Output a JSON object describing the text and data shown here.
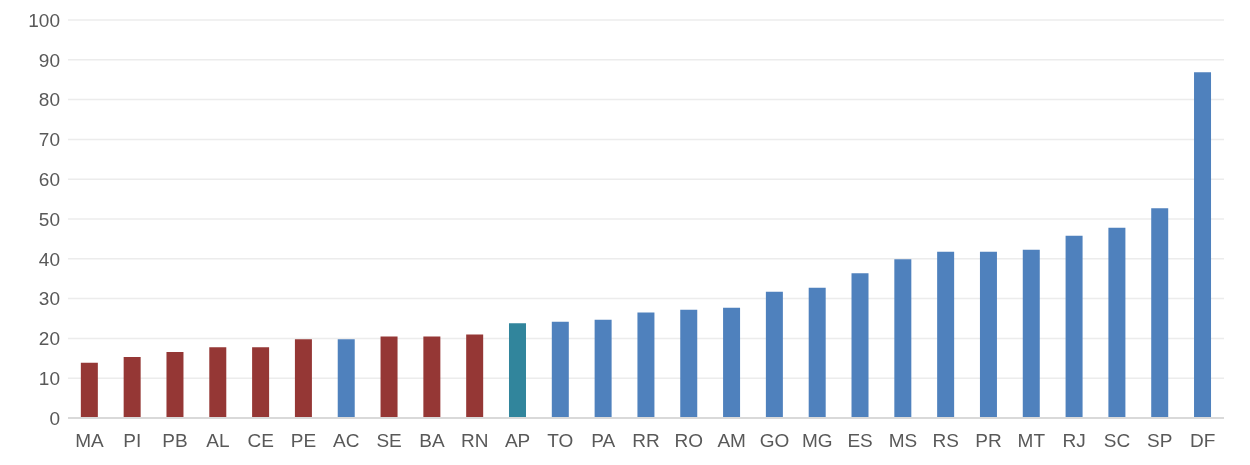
{
  "chart_data": {
    "type": "bar",
    "categories": [
      "MA",
      "PI",
      "PB",
      "AL",
      "CE",
      "PE",
      "AC",
      "SE",
      "BA",
      "RN",
      "AP",
      "TO",
      "PA",
      "RR",
      "RO",
      "AM",
      "GO",
      "MG",
      "ES",
      "MS",
      "RS",
      "PR",
      "MT",
      "RJ",
      "SC",
      "SP",
      "DF"
    ],
    "values": [
      13.9,
      15.3,
      16.6,
      17.8,
      17.8,
      19.8,
      19.8,
      20.5,
      20.5,
      21.0,
      23.8,
      24.2,
      24.7,
      26.5,
      27.2,
      27.7,
      31.7,
      32.7,
      36.4,
      39.9,
      41.8,
      41.8,
      42.3,
      45.8,
      47.8,
      52.7,
      86.9
    ],
    "colors": [
      "#953735",
      "#953735",
      "#953735",
      "#953735",
      "#953735",
      "#953735",
      "#4f81bd",
      "#953735",
      "#953735",
      "#953735",
      "#31859c",
      "#4f81bd",
      "#4f81bd",
      "#4f81bd",
      "#4f81bd",
      "#4f81bd",
      "#4f81bd",
      "#4f81bd",
      "#4f81bd",
      "#4f81bd",
      "#4f81bd",
      "#4f81bd",
      "#4f81bd",
      "#4f81bd",
      "#4f81bd",
      "#4f81bd",
      "#4f81bd"
    ],
    "ylim": [
      0,
      100
    ],
    "yticks": [
      0,
      10,
      20,
      30,
      40,
      50,
      60,
      70,
      80,
      90,
      100
    ],
    "grid": "y"
  }
}
